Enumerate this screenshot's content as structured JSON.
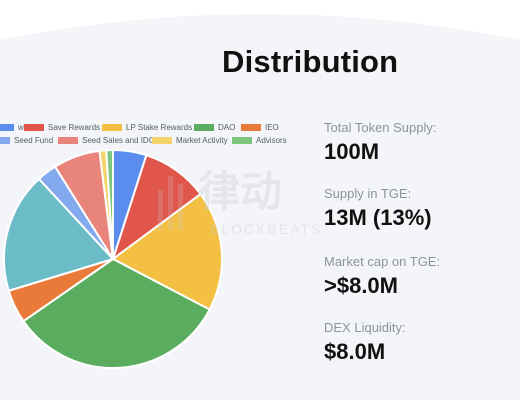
{
  "heading": "Distribution",
  "chart_data": {
    "type": "pie",
    "title": "",
    "legend_position": "top",
    "series": [
      {
        "name": "Rewards",
        "value": 5,
        "color": "#5b8def"
      },
      {
        "name": "Save Rewards",
        "value": 10,
        "color": "#e0564a"
      },
      {
        "name": "LP Stake Rewards",
        "value": 18,
        "color": "#f4c043"
      },
      {
        "name": "DAO",
        "value": 33,
        "color": "#5aad5e"
      },
      {
        "name": "IEO",
        "value": 5,
        "color": "#ea7a3a"
      },
      {
        "name": "",
        "value": 18,
        "color": "#6cbcc8"
      },
      {
        "name": "Seed Fund",
        "value": 3,
        "color": "#82a8ee"
      },
      {
        "name": "Seed Sales and IDO",
        "value": 7,
        "color": "#e8847a"
      },
      {
        "name": "Market Activity",
        "value": 1,
        "color": "#f5d36b"
      },
      {
        "name": "Advisors",
        "value": 1,
        "color": "#7cc67f"
      }
    ]
  },
  "legend": [
    {
      "label": "wards",
      "color": "#5b8def"
    },
    {
      "label": "Save Rewards",
      "color": "#e0564a"
    },
    {
      "label": "LP Stake Rewards",
      "color": "#f4c043"
    },
    {
      "label": "DAO",
      "color": "#5aad5e"
    },
    {
      "label": "IEO",
      "color": "#ea7a3a"
    },
    {
      "label": "Seed Fund",
      "color": "#82a8ee"
    },
    {
      "label": "Seed Sales and IDO",
      "color": "#e8847a"
    },
    {
      "label": "Market Activity",
      "color": "#f5d36b"
    },
    {
      "label": "Advisors",
      "color": "#7cc67f"
    }
  ],
  "stats": [
    {
      "label": "Total Token Supply:",
      "value": "100M"
    },
    {
      "label": "Supply in TGE:",
      "value": "13M (13%)"
    },
    {
      "label": "Market cap on TGE:",
      "value": ">$8.0M"
    },
    {
      "label": "DEX Liquidity:",
      "value": "$8.0M"
    }
  ],
  "watermark": {
    "glyphs": "律动",
    "text": "BLOCKBEATS"
  }
}
